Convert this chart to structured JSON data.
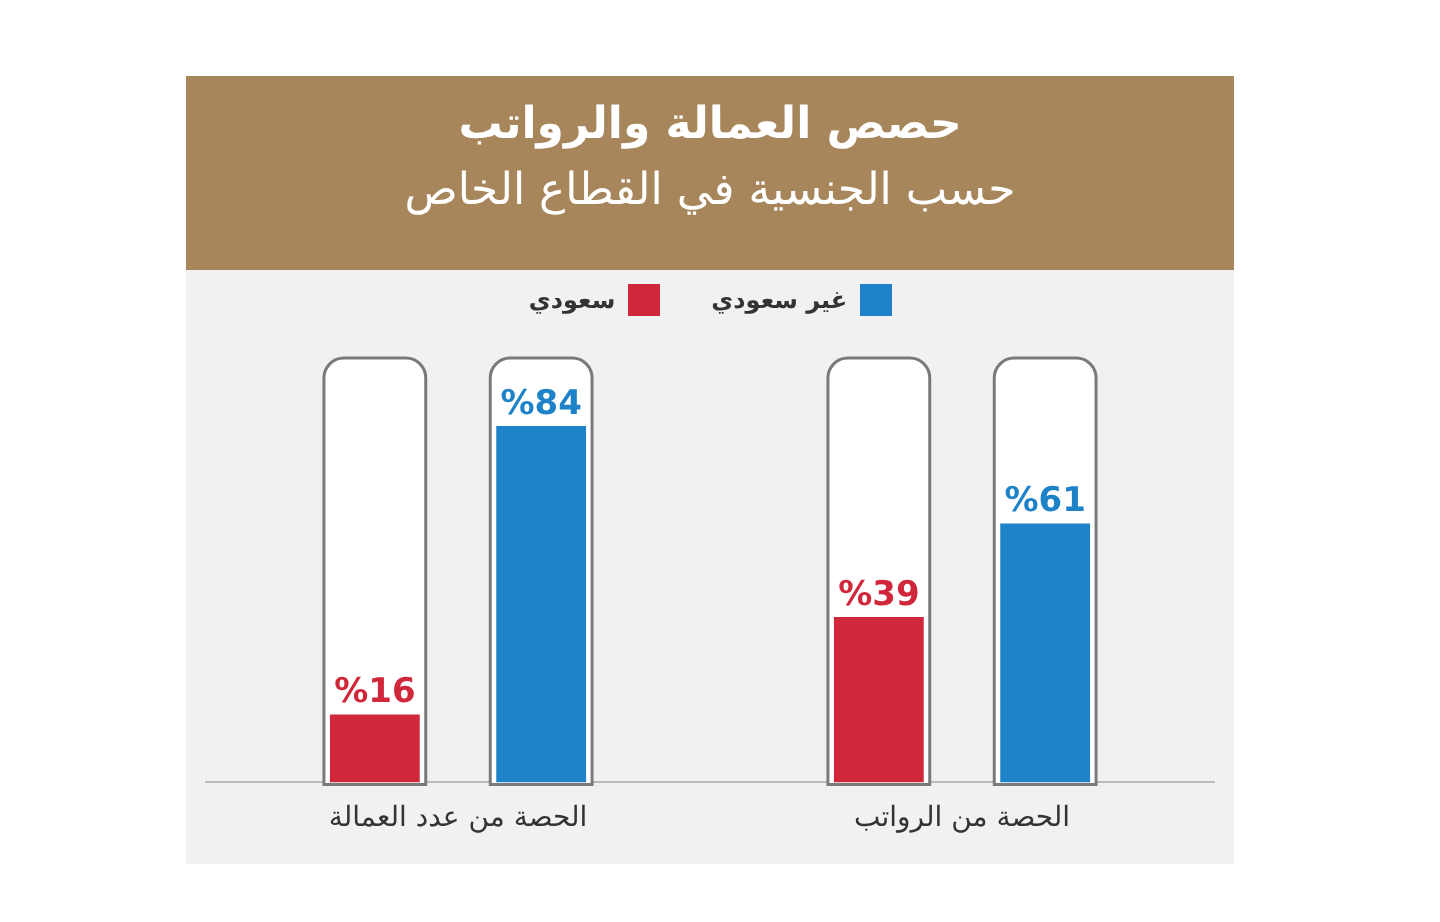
{
  "chart_data": {
    "type": "bar",
    "title": "حصص العمالة والرواتب",
    "subtitle": "حسب الجنسية في القطاع الخاص",
    "categories": [
      "الحصة من عدد العمالة",
      "الحصة من الرواتب"
    ],
    "series": [
      {
        "name": "سعودي",
        "color": "#d0283a",
        "values": [
          16,
          39
        ],
        "value_labels": [
          "%16",
          "%39"
        ]
      },
      {
        "name": "غير سعودي",
        "color": "#1e82c8",
        "values": [
          84,
          61
        ],
        "value_labels": [
          "%84",
          "%61"
        ]
      }
    ],
    "ylim": [
      0,
      100
    ],
    "grid": false,
    "legend": "top",
    "tick_labels": "x"
  }
}
